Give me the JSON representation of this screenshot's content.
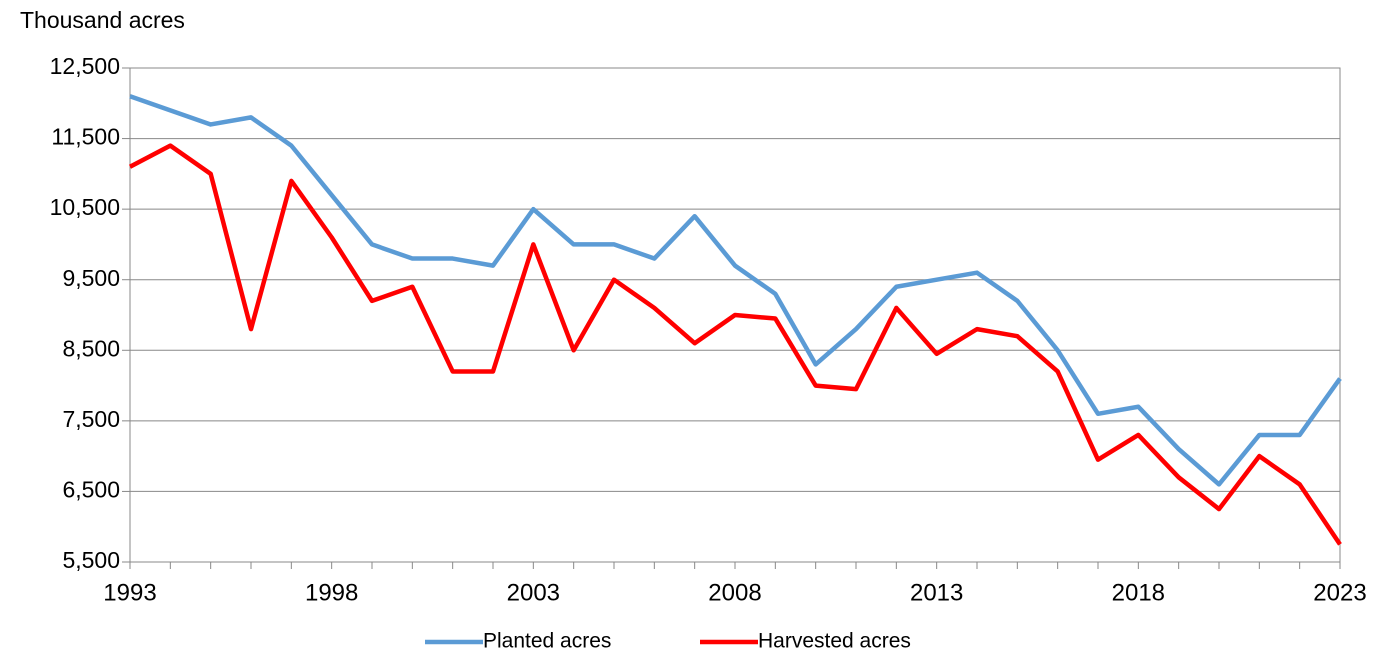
{
  "chart_data": {
    "type": "line",
    "y_label": "Thousand acres",
    "x": [
      1993,
      1994,
      1995,
      1996,
      1997,
      1998,
      1999,
      2000,
      2001,
      2002,
      2003,
      2004,
      2005,
      2006,
      2007,
      2008,
      2009,
      2010,
      2011,
      2012,
      2013,
      2014,
      2015,
      2016,
      2017,
      2018,
      2019,
      2020,
      2021,
      2022,
      2023
    ],
    "series": [
      {
        "name": "Planted acres",
        "color": "#5b9bd5",
        "values": [
          12100,
          11900,
          11700,
          11800,
          11400,
          10700,
          10000,
          9800,
          9800,
          9700,
          10500,
          10000,
          10000,
          9800,
          10400,
          9700,
          9300,
          8300,
          8800,
          9400,
          9500,
          9600,
          9200,
          8500,
          7600,
          7700,
          7100,
          6600,
          7300,
          7300,
          8100
        ]
      },
      {
        "name": "Harvested acres",
        "color": "#ff0000",
        "values": [
          11100,
          11400,
          11000,
          8800,
          10900,
          10100,
          9200,
          9400,
          8200,
          8200,
          10000,
          8500,
          9500,
          9100,
          8600,
          9000,
          8950,
          8000,
          7950,
          9100,
          8450,
          8800,
          8700,
          8200,
          6950,
          7300,
          6700,
          6250,
          7000,
          6600,
          5750
        ]
      }
    ],
    "xlim": [
      1993,
      2023
    ],
    "xticks": [
      1993,
      1998,
      2003,
      2008,
      2013,
      2018,
      2023
    ],
    "ylim": [
      5500,
      12500
    ],
    "yticks": [
      {
        "value": 5500,
        "label": "5,500"
      },
      {
        "value": 6500,
        "label": "6,500"
      },
      {
        "value": 7500,
        "label": "7,500"
      },
      {
        "value": 8500,
        "label": "8,500"
      },
      {
        "value": 9500,
        "label": "9,500"
      },
      {
        "value": 10500,
        "label": "10,500"
      },
      {
        "value": 11500,
        "label": "11,500"
      },
      {
        "value": 12500,
        "label": "12,500"
      }
    ],
    "grid": true,
    "legend": "bottom"
  }
}
